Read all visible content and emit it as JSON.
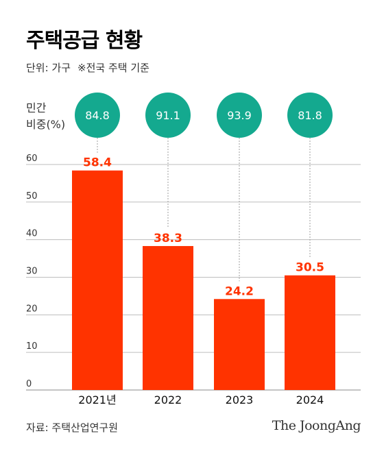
{
  "header": {
    "title": "주택공급 현황",
    "unit": "단위: 가구",
    "note": "※전국 주택 기준"
  },
  "share_label": {
    "line1": "민간",
    "line2": "비중(%)"
  },
  "footer": {
    "source": "자료: 주택산업연구원",
    "logo": "The JoongAng"
  },
  "colors": {
    "bar": "#ff3300",
    "circle": "#14a98f",
    "grid": "#bdbdbd",
    "dotted": "#9e9e9e"
  },
  "chart_data": {
    "type": "bar",
    "title": "주택공급 현황",
    "categories": [
      "2021년",
      "2022",
      "2023",
      "2024"
    ],
    "values": [
      58.4,
      38.3,
      24.2,
      30.5
    ],
    "value_labels": [
      "58.4",
      "38.3",
      "24.2",
      "30.5"
    ],
    "private_share": [
      84.8,
      91.1,
      93.9,
      81.8
    ],
    "private_share_labels": [
      "84.8",
      "91.1",
      "93.9",
      "81.8"
    ],
    "yticks": [
      "0",
      "10",
      "20",
      "30",
      "40",
      "50",
      "60"
    ],
    "ylim": [
      0,
      62
    ],
    "grid": true
  }
}
